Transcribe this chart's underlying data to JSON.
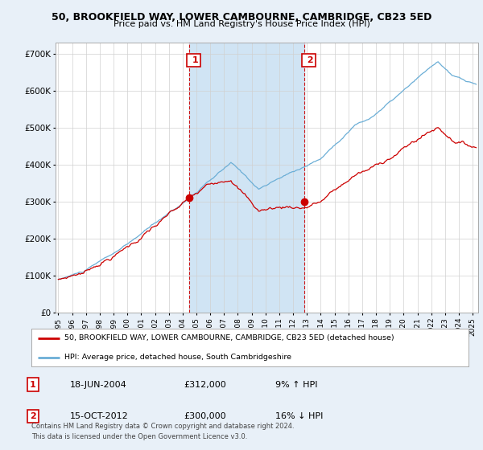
{
  "title": "50, BROOKFIELD WAY, LOWER CAMBOURNE, CAMBRIDGE, CB23 5ED",
  "subtitle": "Price paid vs. HM Land Registry's House Price Index (HPI)",
  "ylabel_ticks": [
    "£0",
    "£100K",
    "£200K",
    "£300K",
    "£400K",
    "£500K",
    "£600K",
    "£700K"
  ],
  "ytick_values": [
    0,
    100000,
    200000,
    300000,
    400000,
    500000,
    600000,
    700000
  ],
  "ylim": [
    0,
    730000
  ],
  "xlim_start": 1994.8,
  "xlim_end": 2025.4,
  "transaction1_date": 2004.46,
  "transaction1_price": 312000,
  "transaction2_date": 2012.79,
  "transaction2_price": 300000,
  "hpi_color": "#6baed6",
  "hpi_fill_color": "#d6e8f7",
  "price_color": "#cc0000",
  "marker_color": "#cc0000",
  "vline_color": "#cc0000",
  "background_color": "#e8f0f8",
  "plot_bg_color": "#ffffff",
  "shade_color": "#d0e4f4",
  "legend_line1": "50, BROOKFIELD WAY, LOWER CAMBOURNE, CAMBRIDGE, CB23 5ED (detached house)",
  "legend_line2": "HPI: Average price, detached house, South Cambridgeshire",
  "note1_label": "1",
  "note1_date": "18-JUN-2004",
  "note1_price": "£312,000",
  "note1_hpi": "9% ↑ HPI",
  "note2_label": "2",
  "note2_date": "15-OCT-2012",
  "note2_price": "£300,000",
  "note2_hpi": "16% ↓ HPI",
  "footer": "Contains HM Land Registry data © Crown copyright and database right 2024.\nThis data is licensed under the Open Government Licence v3.0."
}
